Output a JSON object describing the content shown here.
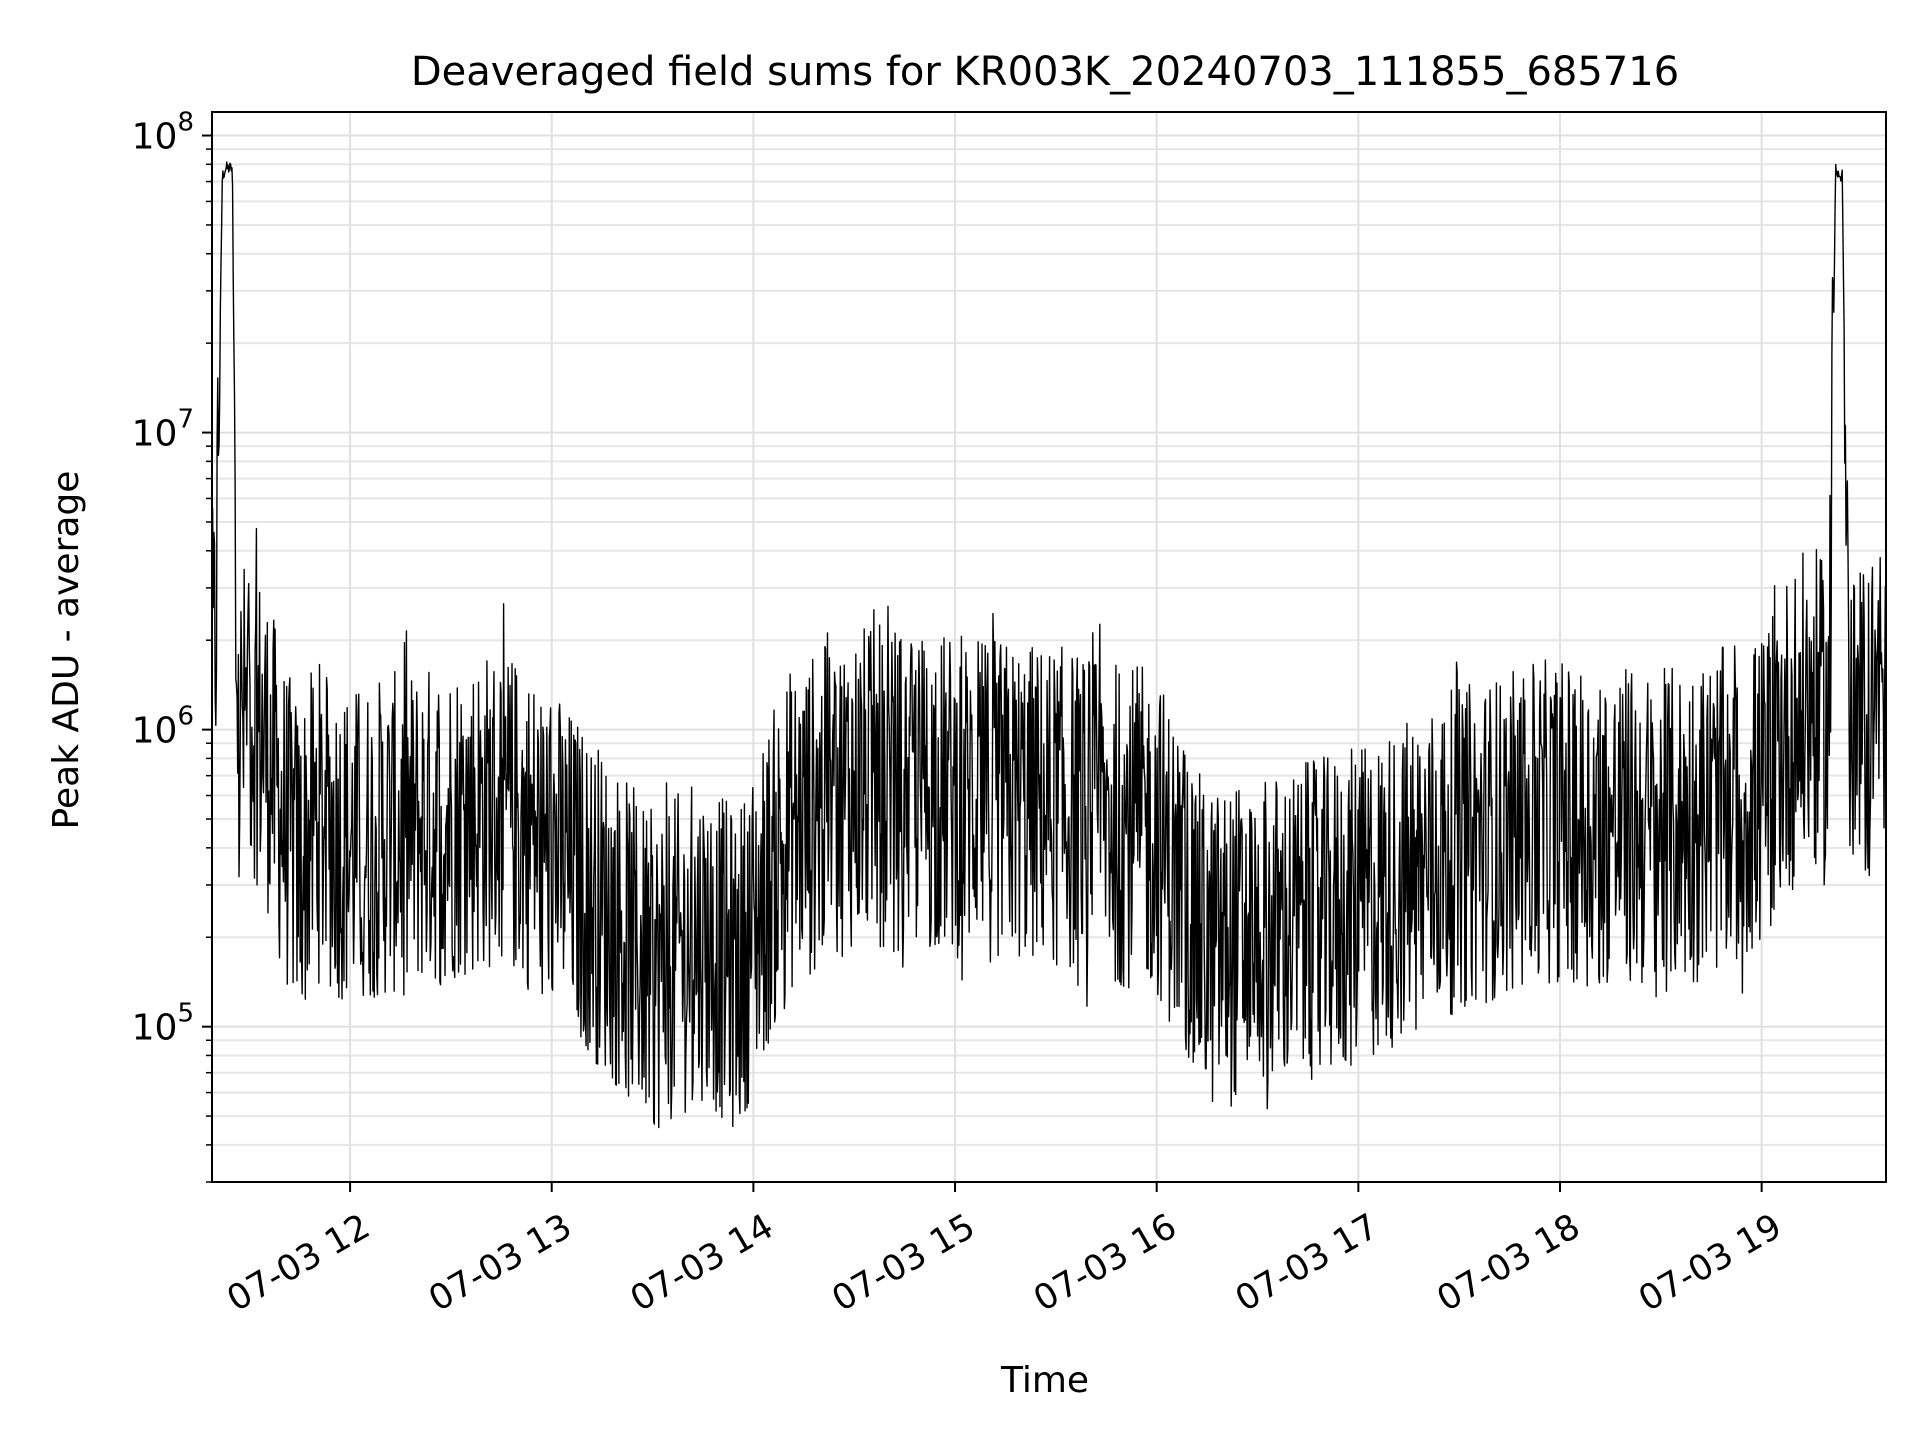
{
  "chart_data": {
    "type": "line",
    "title": "Deaveraged field sums for KR003K_20240703_111855_685716",
    "xlabel": "Time",
    "ylabel": "Peak ADU - average",
    "x_range": [
      "2024-07-03T11:18:55",
      "2024-07-03T19:37:00"
    ],
    "y_range": [
      30000,
      120000000
    ],
    "y_scale": "log",
    "grid": true,
    "minor_grid": true,
    "legend": "none",
    "line_color": "#000000",
    "x_ticks": [
      {
        "value": "2024-07-03T12:00:00",
        "label": "07-03 12"
      },
      {
        "value": "2024-07-03T13:00:00",
        "label": "07-03 13"
      },
      {
        "value": "2024-07-03T14:00:00",
        "label": "07-03 14"
      },
      {
        "value": "2024-07-03T15:00:00",
        "label": "07-03 15"
      },
      {
        "value": "2024-07-03T16:00:00",
        "label": "07-03 16"
      },
      {
        "value": "2024-07-03T17:00:00",
        "label": "07-03 17"
      },
      {
        "value": "2024-07-03T18:00:00",
        "label": "07-03 18"
      },
      {
        "value": "2024-07-03T19:00:00",
        "label": "07-03 19"
      }
    ],
    "y_ticks": [
      {
        "value": 100000,
        "base": "10",
        "exp": "5"
      },
      {
        "value": 1000000,
        "base": "10",
        "exp": "6"
      },
      {
        "value": 10000000,
        "base": "10",
        "exp": "7"
      },
      {
        "value": 100000000,
        "base": "10",
        "exp": "8"
      }
    ],
    "series": [
      {
        "x": [
          "2024-07-03T11:18:55",
          "2024-07-03T11:20:00",
          "2024-07-03T11:22:00",
          "2024-07-03T11:23:00",
          "2024-07-03T11:25:00",
          "2024-07-03T11:26:00",
          "2024-07-03T11:27:00",
          "2024-07-03T11:30:00",
          "2024-07-03T11:35:00",
          "2024-07-03T11:40:00",
          "2024-07-03T11:45:00",
          "2024-07-03T11:50:00",
          "2024-07-03T12:00:00",
          "2024-07-03T12:15:00",
          "2024-07-03T12:30:00",
          "2024-07-03T12:45:00",
          "2024-07-03T13:00:00",
          "2024-07-03T13:15:00",
          "2024-07-03T13:30:00",
          "2024-07-03T13:45:00",
          "2024-07-03T13:55:00",
          "2024-07-03T14:10:00",
          "2024-07-03T14:30:00",
          "2024-07-03T15:00:00",
          "2024-07-03T15:30:00",
          "2024-07-03T16:00:00",
          "2024-07-03T16:15:00",
          "2024-07-03T16:30:00",
          "2024-07-03T16:45:00",
          "2024-07-03T17:00:00",
          "2024-07-03T17:30:00",
          "2024-07-03T18:00:00",
          "2024-07-03T18:30:00",
          "2024-07-03T19:00:00",
          "2024-07-03T19:05:00",
          "2024-07-03T19:15:00",
          "2024-07-03T19:20:00",
          "2024-07-03T19:22:00",
          "2024-07-03T19:24:00",
          "2024-07-03T19:26:00",
          "2024-07-03T19:28:00",
          "2024-07-03T19:30:00",
          "2024-07-03T19:35:00",
          "2024-07-03T19:37:00"
        ],
        "y": [
          1500000,
          2000000,
          75000000,
          80000000,
          80000000,
          2000000,
          1000000,
          1200000,
          900000,
          500000,
          350000,
          500000,
          400000,
          450000,
          500000,
          550000,
          400000,
          250000,
          150000,
          200000,
          150000,
          450000,
          650000,
          600000,
          550000,
          450000,
          180000,
          200000,
          220000,
          250000,
          400000,
          500000,
          450000,
          600000,
          900000,
          1200000,
          1000000,
          80000000,
          75000000,
          1000000,
          900000,
          1000000,
          1500000,
          900000
        ]
      }
    ]
  }
}
